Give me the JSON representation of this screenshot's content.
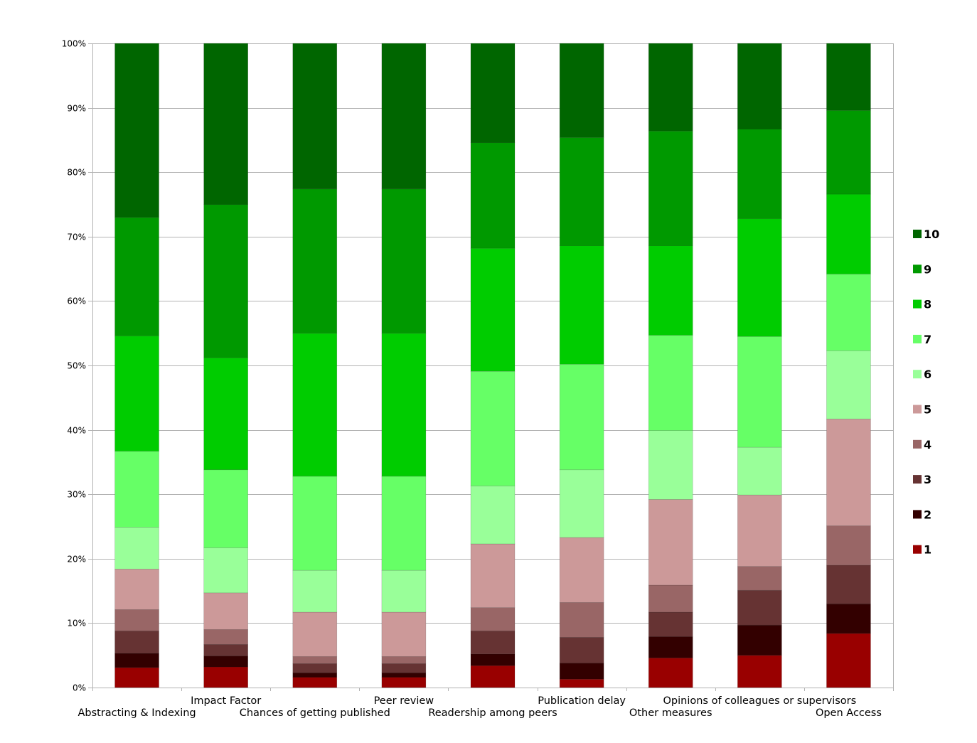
{
  "chart_data": {
    "type": "bar",
    "stacked": true,
    "normalized": true,
    "title": "",
    "xlabel": "",
    "ylabel": "",
    "ylim": [
      0,
      100
    ],
    "yticks": [
      "0%",
      "10%",
      "20%",
      "30%",
      "40%",
      "50%",
      "60%",
      "70%",
      "80%",
      "90%",
      "100%"
    ],
    "grid": "horizontal",
    "legend_position": "right",
    "categories": [
      "Abstracting & Indexing",
      "Impact Factor",
      "Chances of getting published",
      "Peer review",
      "Readership among peers",
      "Publication delay",
      "Other measures",
      "Opinions of colleagues or supervisors",
      "Open Access"
    ],
    "series": [
      {
        "name": "1",
        "color": "#990000",
        "values": [
          3.1,
          3.2,
          1.6,
          1.6,
          3.4,
          1.3,
          4.6,
          5.0,
          8.4
        ]
      },
      {
        "name": "2",
        "color": "#330000",
        "values": [
          2.2,
          1.7,
          0.7,
          0.7,
          1.8,
          2.5,
          3.3,
          4.7,
          4.6
        ]
      },
      {
        "name": "3",
        "color": "#663333",
        "values": [
          3.5,
          1.8,
          1.4,
          1.4,
          3.6,
          4.0,
          3.8,
          5.4,
          6.0
        ]
      },
      {
        "name": "4",
        "color": "#996666",
        "values": [
          3.3,
          2.3,
          1.1,
          1.1,
          3.6,
          5.4,
          4.2,
          3.7,
          6.1
        ]
      },
      {
        "name": "5",
        "color": "#cc9999",
        "values": [
          6.3,
          5.7,
          6.9,
          6.9,
          9.9,
          10.1,
          13.3,
          11.1,
          16.6
        ]
      },
      {
        "name": "6",
        "color": "#99ff99",
        "values": [
          6.5,
          7.0,
          6.5,
          6.5,
          9.0,
          10.5,
          10.7,
          7.4,
          10.6
        ]
      },
      {
        "name": "7",
        "color": "#66ff66",
        "values": [
          11.8,
          12.1,
          14.6,
          14.6,
          17.8,
          16.4,
          14.8,
          17.2,
          11.9
        ]
      },
      {
        "name": "8",
        "color": "#00cc00",
        "values": [
          17.9,
          17.4,
          22.2,
          22.2,
          19.1,
          18.4,
          13.9,
          18.3,
          12.4
        ]
      },
      {
        "name": "9",
        "color": "#009900",
        "values": [
          18.4,
          23.8,
          22.4,
          22.4,
          16.4,
          16.8,
          17.8,
          13.9,
          13.0
        ]
      },
      {
        "name": "10",
        "color": "#006600",
        "values": [
          27.0,
          25.0,
          22.6,
          22.6,
          15.4,
          14.6,
          13.6,
          13.3,
          10.4
        ]
      }
    ]
  }
}
